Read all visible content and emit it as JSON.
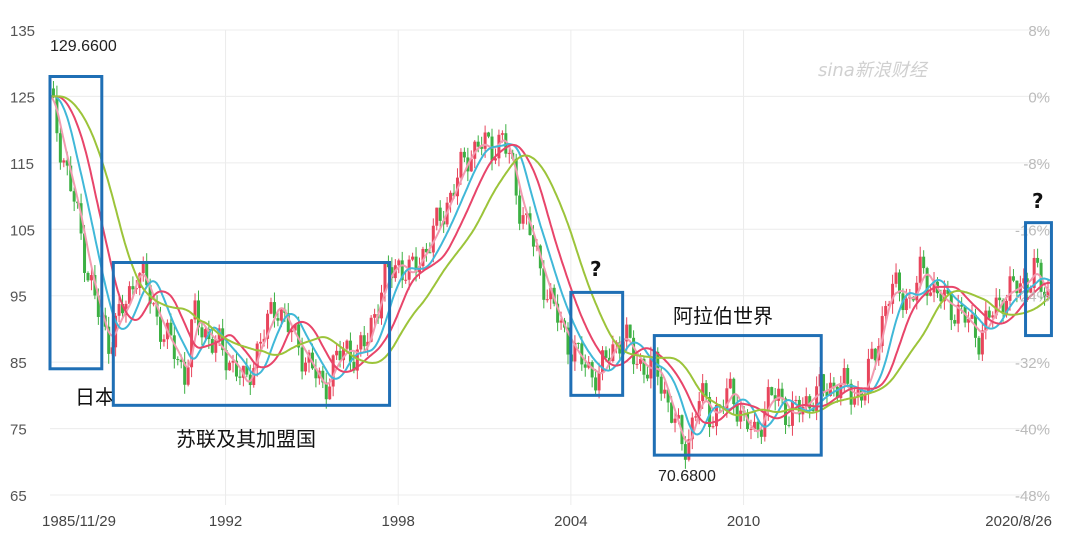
{
  "chart_data": {
    "type": "line",
    "watermark": "sina新浪财经",
    "y_left_ticks": [
      "135",
      "125",
      "115",
      "105",
      "95",
      "85",
      "75",
      "65"
    ],
    "y_right_ticks": [
      "8%",
      "0%",
      "-8%",
      "-16%",
      "-24%",
      "-32%",
      "-40%",
      "-48%"
    ],
    "ylim": [
      65,
      135
    ],
    "x_ticks": [
      "1985/11/29",
      "1992",
      "1998",
      "2004",
      "2010",
      "2020/8/26"
    ],
    "xlim": [
      1985.9,
      2020.65
    ],
    "max_label": "129.6600",
    "min_label": "70.6800",
    "colors": {
      "box": "#1f6fb5",
      "up_bar": "#e8455c",
      "down_bar": "#3cb043",
      "ma_short": "#f29bb0",
      "ma_mid": "#40b8d8",
      "ma_long": "#e8456a",
      "ma_longest": "#9cc43a"
    },
    "series": [
      {
        "values": [
          [
            1985.9,
            125
          ],
          [
            1986.3,
            117
          ],
          [
            1986.8,
            108
          ],
          [
            1987.2,
            99
          ],
          [
            1987.6,
            92
          ],
          [
            1987.9,
            88
          ],
          [
            1988.3,
            92
          ],
          [
            1988.6,
            94
          ],
          [
            1988.9,
            99
          ],
          [
            1989.2,
            97
          ],
          [
            1989.5,
            93
          ],
          [
            1989.9,
            89
          ],
          [
            1990.3,
            86
          ],
          [
            1990.6,
            83
          ],
          [
            1990.9,
            92
          ],
          [
            1991.2,
            90
          ],
          [
            1991.6,
            88
          ],
          [
            1992.0,
            86
          ],
          [
            1992.4,
            84
          ],
          [
            1992.7,
            81
          ],
          [
            1993.0,
            86
          ],
          [
            1993.4,
            90
          ],
          [
            1993.8,
            94
          ],
          [
            1994.2,
            90
          ],
          [
            1994.6,
            87
          ],
          [
            1995.0,
            84
          ],
          [
            1995.4,
            81
          ],
          [
            1995.8,
            85
          ],
          [
            1996.2,
            87
          ],
          [
            1996.6,
            86
          ],
          [
            1996.9,
            88
          ],
          [
            1997.2,
            93
          ],
          [
            1997.6,
            98
          ],
          [
            1998.0,
            100
          ],
          [
            1998.4,
            98
          ],
          [
            1998.8,
            101
          ],
          [
            1999.2,
            104
          ],
          [
            1999.6,
            108
          ],
          [
            2000.0,
            112
          ],
          [
            2000.4,
            116
          ],
          [
            2000.8,
            118
          ],
          [
            2001.2,
            117
          ],
          [
            2001.6,
            119
          ],
          [
            2001.9,
            115
          ],
          [
            2002.2,
            109
          ],
          [
            2002.6,
            104
          ],
          [
            2003.0,
            98
          ],
          [
            2003.4,
            93
          ],
          [
            2003.8,
            89
          ],
          [
            2004.2,
            86
          ],
          [
            2004.6,
            84
          ],
          [
            2005.0,
            83
          ],
          [
            2005.4,
            87
          ],
          [
            2005.8,
            89
          ],
          [
            2006.2,
            86
          ],
          [
            2006.6,
            84
          ],
          [
            2007.0,
            84
          ],
          [
            2007.3,
            80
          ],
          [
            2007.6,
            76
          ],
          [
            2007.9,
            72
          ],
          [
            2008.1,
            74
          ],
          [
            2008.5,
            80
          ],
          [
            2008.9,
            77
          ],
          [
            2009.2,
            78
          ],
          [
            2009.6,
            81
          ],
          [
            2010.0,
            76
          ],
          [
            2010.4,
            74
          ],
          [
            2010.8,
            79
          ],
          [
            2011.2,
            80
          ],
          [
            2011.6,
            77
          ],
          [
            2012.0,
            78
          ],
          [
            2012.4,
            80
          ],
          [
            2012.9,
            81
          ],
          [
            2013.3,
            82
          ],
          [
            2013.8,
            80
          ],
          [
            2014.2,
            81
          ],
          [
            2014.6,
            87
          ],
          [
            2015.0,
            95
          ],
          [
            2015.4,
            96
          ],
          [
            2015.8,
            94
          ],
          [
            2016.2,
            99
          ],
          [
            2016.6,
            96
          ],
          [
            2017.0,
            94
          ],
          [
            2017.4,
            93
          ],
          [
            2017.8,
            91
          ],
          [
            2018.2,
            89
          ],
          [
            2018.6,
            92
          ],
          [
            2019.0,
            95
          ],
          [
            2019.4,
            96
          ],
          [
            2019.8,
            97
          ],
          [
            2020.1,
            99
          ],
          [
            2020.35,
            96
          ],
          [
            2020.65,
            95
          ]
        ]
      }
    ],
    "annotations": [
      {
        "label": "日本",
        "x0": 1985.9,
        "x1": 1987.7,
        "y0": 84,
        "y1": 128
      },
      {
        "label": "苏联及其加盟国",
        "x0": 1988.1,
        "x1": 1997.7,
        "y0": 78.5,
        "y1": 100
      },
      {
        "label": "?",
        "x0": 2004.0,
        "x1": 2005.8,
        "y0": 80,
        "y1": 95.5
      },
      {
        "label": "阿拉伯世界",
        "x0": 2006.9,
        "x1": 2012.7,
        "y0": 71,
        "y1": 89
      },
      {
        "label": "?",
        "x0": 2019.8,
        "x1": 2020.7,
        "y0": 89,
        "y1": 106
      }
    ]
  }
}
